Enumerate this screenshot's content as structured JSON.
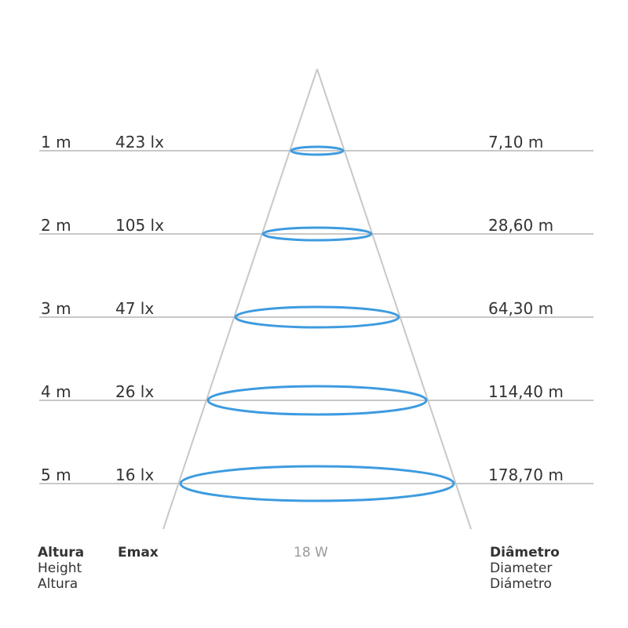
{
  "power": "18 W",
  "colors": {
    "ring": "#3d9be0",
    "line": "#c8c8c8",
    "text": "#333333",
    "muted": "#9a9a9a"
  },
  "rows": [
    {
      "height": "1 m",
      "emax": "423 lx",
      "diameter": "7,10 m"
    },
    {
      "height": "2 m",
      "emax": "105 lx",
      "diameter": "28,60 m"
    },
    {
      "height": "3 m",
      "emax": "47 lx",
      "diameter": "64,30 m"
    },
    {
      "height": "4 m",
      "emax": "26 lx",
      "diameter": "114,40 m"
    },
    {
      "height": "5 m",
      "emax": "16 lx",
      "diameter": "178,70 m"
    }
  ],
  "footer": {
    "height": {
      "pt": "Altura",
      "en": "Height",
      "es": "Altura"
    },
    "emax": "Emax",
    "diameter": {
      "pt": "Diâmetro",
      "en": "Diameter",
      "es": "Diámetro"
    }
  }
}
